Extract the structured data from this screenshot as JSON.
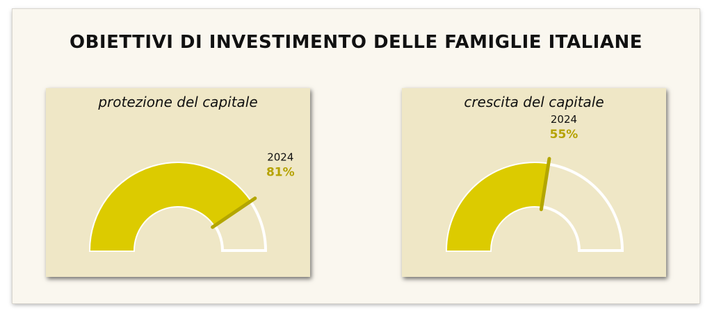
{
  "title": "OBIETTIVI DI INVESTIMENTO DELLE FAMIGLIE ITALIANE",
  "colors": {
    "fill": "#dccb00",
    "track": "#efe7c6",
    "needle": "#b3a600",
    "outline": "#ffffff",
    "value_text": "#b5a200"
  },
  "chart_data": [
    {
      "type": "gauge",
      "title": "protezione del capitale",
      "year": "2024",
      "value": 81,
      "value_label": "81%",
      "range": [
        0,
        100
      ]
    },
    {
      "type": "gauge",
      "title": "crescita del capitale",
      "year": "2024",
      "value": 55,
      "value_label": "55%",
      "range": [
        0,
        100
      ]
    }
  ]
}
